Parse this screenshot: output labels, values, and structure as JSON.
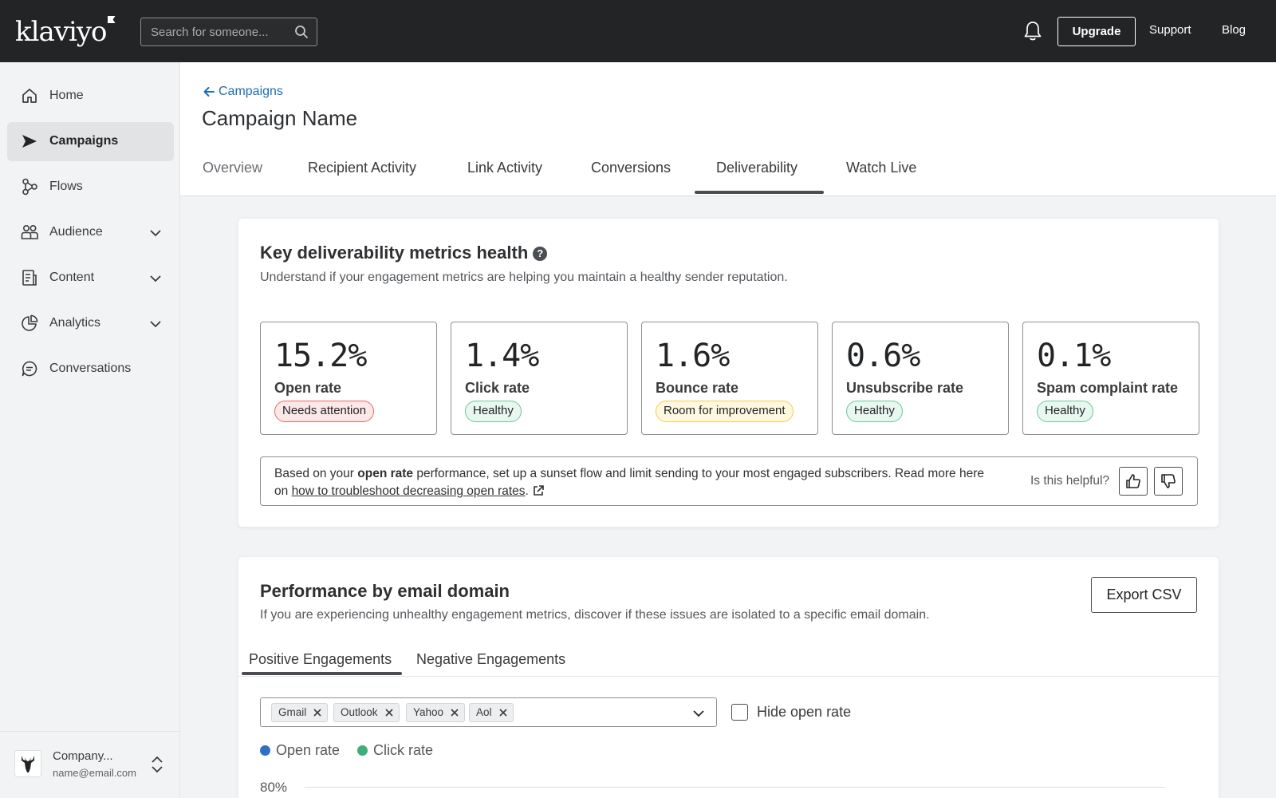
{
  "topbar": {
    "logo": "klaviyo",
    "search_placeholder": "Search for someone...",
    "upgrade_label": "Upgrade",
    "support_label": "Support",
    "blog_label": "Blog"
  },
  "sidebar": {
    "items": [
      {
        "label": "Home",
        "icon": "home-icon"
      },
      {
        "label": "Campaigns",
        "icon": "campaigns-icon",
        "active": true
      },
      {
        "label": "Flows",
        "icon": "flows-icon"
      },
      {
        "label": "Audience",
        "icon": "audience-icon",
        "expandable": true
      },
      {
        "label": "Content",
        "icon": "content-icon",
        "expandable": true
      },
      {
        "label": "Analytics",
        "icon": "analytics-icon",
        "expandable": true
      },
      {
        "label": "Conversations",
        "icon": "conversations-icon"
      }
    ],
    "account": {
      "name": "Company...",
      "email": "name@email.com"
    }
  },
  "header": {
    "back_label": "Campaigns",
    "title": "Campaign Name",
    "tabs": [
      {
        "label": "Overview"
      },
      {
        "label": "Recipient Activity"
      },
      {
        "label": "Link Activity"
      },
      {
        "label": "Conversions"
      },
      {
        "label": "Deliverability",
        "active": true
      },
      {
        "label": "Watch Live"
      }
    ]
  },
  "health": {
    "title": "Key deliverability metrics health",
    "subtitle": "Understand if your engagement metrics are helping you maintain a healthy sender reputation.",
    "metrics": [
      {
        "value": "15.2%",
        "label": "Open rate",
        "status": "Needs attention",
        "status_color": "#e96767"
      },
      {
        "value": "1.4%",
        "label": "Click rate",
        "status": "Healthy",
        "status_color": "#6cc79b"
      },
      {
        "value": "1.6%",
        "label": "Bounce rate",
        "status": "Room for improvement",
        "status_color": "#f4cc4b"
      },
      {
        "value": "0.6%",
        "label": "Unsubscribe rate",
        "status": "Healthy",
        "status_color": "#6cc79b"
      },
      {
        "value": "0.1%",
        "label": "Spam complaint rate",
        "status": "Healthy",
        "status_color": "#6cc79b"
      }
    ],
    "advice": {
      "prefix": "Based on your ",
      "bold": "open rate",
      "middle": " performance, set up a sunset flow and limit sending to your most engaged subscribers. Read more here on ",
      "link": "how to troubleshoot decreasing open rates",
      "suffix": "."
    },
    "helpful_label": "Is this helpful?"
  },
  "domain": {
    "title": "Performance by email domain",
    "subtitle": "If you are experiencing unhealthy engagement metrics, discover if these issues are isolated to a specific email domain.",
    "export_label": "Export CSV",
    "subtabs": [
      {
        "label": "Positive Engagements",
        "active": true
      },
      {
        "label": "Negative Engagements"
      }
    ],
    "chips": [
      "Gmail",
      "Outlook",
      "Yahoo",
      "Aol"
    ],
    "hide_open_rate_label": "Hide open rate",
    "hide_open_rate_checked": false,
    "legend": [
      {
        "label": "Open rate",
        "color": "#2f6fc4"
      },
      {
        "label": "Click rate",
        "color": "#3fae7c"
      }
    ],
    "y_axis_top": "80%"
  }
}
